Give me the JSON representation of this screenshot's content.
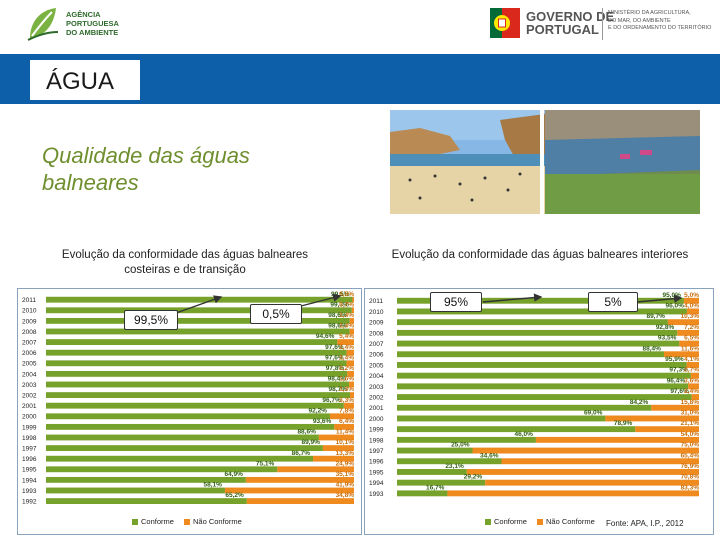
{
  "header": {
    "apa_name": "AGÊNCIA\nPORTUGUESA\nDO AMBIENTE",
    "gov_name": "GOVERNO DE\nPORTUGAL",
    "ministry": "MINISTÉRIO DA AGRICULTURA,\nDO MAR, DO AMBIENTE\nE DO ORDENAMENTO DO TERRITÓRIO"
  },
  "banner": {
    "title": "ÁGUA"
  },
  "subtitle": "Qualidade das águas balneares",
  "colors": {
    "conforme": "#76a12a",
    "nao_conforme": "#ef8a1f",
    "banner": "#0e5fa9",
    "subtitle": "#6f8f2f"
  },
  "chart_data": [
    {
      "type": "bar",
      "orientation": "horizontal",
      "stacked": true,
      "title": "Evolução da conformidade das águas balneares costeiras e de transição",
      "categories": [
        "2011",
        "2010",
        "2009",
        "2008",
        "2007",
        "2006",
        "2005",
        "2004",
        "2003",
        "2002",
        "2001",
        "2000",
        "1999",
        "1998",
        "1997",
        "1996",
        "1995",
        "1994",
        "1993",
        "1992"
      ],
      "series": [
        {
          "name": "Conforme",
          "values": [
            99.5,
            99.3,
            98.6,
            98.6,
            94.6,
            97.6,
            97.6,
            97.8,
            98.4,
            98.7,
            96.7,
            92.2,
            93.6,
            88.6,
            89.9,
            86.7,
            75.1,
            64.9,
            58.1,
            65.2
          ]
        },
        {
          "name": "Não Conforme",
          "values": [
            0.5,
            0.7,
            1.4,
            1.4,
            5.4,
            2.4,
            2.4,
            2.2,
            1.6,
            1.3,
            3.3,
            7.8,
            6.4,
            11.4,
            10.1,
            13.3,
            24.9,
            35.1,
            41.9,
            34.8
          ]
        }
      ],
      "labels_conforme": [
        "99,5%",
        "99,3%",
        "98,6%",
        "98,6%",
        "94,6%",
        "97,6%",
        "97,6%",
        "97,8%",
        "98,4%",
        "98,7%",
        "96,7%",
        "92,2%",
        "93,6%",
        "88,6%",
        "89,9%",
        "86,7%",
        "75,1%",
        "64,9%",
        "58,1%",
        "65,2%"
      ],
      "labels_nao_conforme": [
        "0,5%",
        "0,7%",
        "1,4%",
        "1,4%",
        "5,4%",
        "2,4%",
        "2,4%",
        "2,2%",
        "1,6%",
        "1,3%",
        "3,3%",
        "7,8%",
        "6,4%",
        "11,4%",
        "10,1%",
        "13,3%",
        "24,9%",
        "35,1%",
        "41,9%",
        "34,8%"
      ],
      "callouts": [
        "99,5%",
        "0,5%"
      ],
      "xlim": [
        0,
        100
      ],
      "legend": "bottom"
    },
    {
      "type": "bar",
      "orientation": "horizontal",
      "stacked": true,
      "title": "Evolução da conformidade das águas balneares interiores",
      "categories": [
        "2011",
        "2010",
        "2009",
        "2008",
        "2007",
        "2006",
        "2005",
        "2004",
        "2003",
        "2002",
        "2001",
        "2000",
        "1999",
        "1998",
        "1997",
        "1996",
        "1995",
        "1994",
        "1993"
      ],
      "series": [
        {
          "name": "Conforme",
          "values": [
            95.0,
            96.0,
            89.7,
            92.8,
            93.5,
            88.4,
            95.9,
            97.3,
            96.4,
            97.6,
            84.2,
            69.0,
            78.9,
            46.0,
            25.0,
            34.6,
            23.1,
            29.2,
            16.7
          ]
        },
        {
          "name": "Não Conforme",
          "values": [
            5.0,
            4.0,
            10.3,
            7.2,
            6.5,
            11.6,
            4.1,
            2.7,
            3.6,
            2.4,
            15.8,
            31.0,
            21.1,
            54.0,
            75.0,
            65.4,
            76.9,
            70.8,
            83.3
          ]
        }
      ],
      "labels_conforme": [
        "95,0%",
        "96,0%",
        "89,7%",
        "92,8%",
        "93,5%",
        "88,4%",
        "95,9%",
        "97,3%",
        "96,4%",
        "97,6%",
        "84,2%",
        "69,0%",
        "78,9%",
        "46,0%",
        "25,0%",
        "34,6%",
        "23,1%",
        "29,2%",
        "16,7%"
      ],
      "labels_nao_conforme": [
        "5,0%",
        "4,0%",
        "10,3%",
        "7,2%",
        "6,5%",
        "11,6%",
        "4,1%",
        "2,7%",
        "3,6%",
        "2,4%",
        "15,8%",
        "31,0%",
        "21,1%",
        "54,0%",
        "75,0%",
        "65,4%",
        "76,9%",
        "70,8%",
        "83,3%"
      ],
      "callouts": [
        "95%",
        "5%"
      ],
      "xlim": [
        0,
        100
      ],
      "legend": "bottom"
    }
  ],
  "source": "Fonte: APA, I.P., 2012"
}
